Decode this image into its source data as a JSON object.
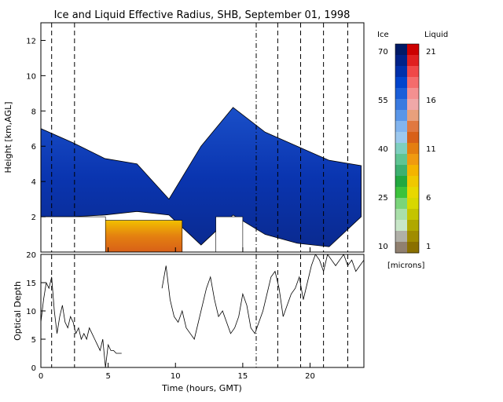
{
  "chart_data": [
    {
      "type": "heatmap",
      "title": "Ice and Liquid Effective Radius, SHB, September 01, 1998",
      "xlabel": "",
      "ylabel": "Height [km,AGL]",
      "xlim": [
        0,
        24
      ],
      "ylim": [
        0,
        13
      ],
      "xticks": [
        0,
        5,
        10,
        15,
        20
      ],
      "yticks": [
        2,
        4,
        6,
        8,
        10,
        12
      ],
      "xticklabels": [
        "",
        "",
        "",
        "",
        ""
      ],
      "yticklabels": [
        "2",
        "4",
        "6",
        "8",
        "10",
        "12"
      ],
      "grid": false,
      "vlines_dashed": [
        0.8,
        2.5,
        17.6,
        19.3,
        21.0,
        22.8
      ],
      "vlines_dashdot": [
        16.0
      ],
      "colorbar": {
        "ice_label": "Ice",
        "liquid_label": "Liquid",
        "unit_label": "[microns]",
        "ice_ticks": [
          "70",
          "55",
          "40",
          "25",
          "10"
        ],
        "liquid_ticks": [
          "21",
          "16",
          "11",
          "6",
          "1"
        ],
        "ice_colors": [
          "#001a66",
          "#002288",
          "#0030aa",
          "#0044cc",
          "#1a5ed8",
          "#3a7ae0",
          "#5a96e8",
          "#82b4ee",
          "#9cc8ee",
          "#7ecfc0",
          "#5fc493",
          "#3db070",
          "#22a840",
          "#3cc23c",
          "#7ad47a",
          "#a9dfa9",
          "#c8e6c8",
          "#b0b0a8",
          "#908070"
        ],
        "liquid_colors": [
          "#cc0000",
          "#e02020",
          "#f04848",
          "#f46c6c",
          "#f49090",
          "#f0a8a8",
          "#e8a07c",
          "#e07840",
          "#d86018",
          "#e47e10",
          "#f09a10",
          "#f4b400",
          "#f0c800",
          "#e8d800",
          "#d8d800",
          "#c4c400",
          "#b0a800",
          "#a08c00",
          "#8a7000"
        ]
      },
      "fields": {
        "ice_cloud": {
          "x_range": [
            0,
            23.8
          ],
          "base_km": [
            2.0,
            2.0,
            2.1,
            2.3,
            2.1,
            0.4,
            2.1,
            1.0,
            0.5,
            0.3,
            2.0
          ],
          "top_km": [
            7.0,
            6.2,
            5.3,
            5.0,
            3.0,
            6.0,
            8.2,
            6.8,
            6.0,
            5.2,
            4.9
          ],
          "typical_radius_microns": [
            55,
            60
          ]
        },
        "liquid_cloud": {
          "x_range": [
            4.8,
            10.5
          ],
          "base_km": 0.0,
          "top_km": 1.8,
          "typical_radius_microns": [
            6,
            11
          ]
        },
        "blanked_regions": [
          {
            "x": [
              0.0,
              4.8
            ],
            "y": [
              0,
              2
            ]
          },
          {
            "x": [
              13.0,
              15.0
            ],
            "y": [
              0,
              2
            ]
          }
        ]
      }
    },
    {
      "type": "line",
      "title": "",
      "xlabel": "Time (hours, GMT)",
      "ylabel": "Optical Depth",
      "xlim": [
        0,
        24
      ],
      "ylim": [
        0,
        20
      ],
      "xticks": [
        0,
        5,
        10,
        15,
        20
      ],
      "yticks": [
        0,
        5,
        10,
        15,
        20
      ],
      "xticklabels": [
        "0",
        "5",
        "10",
        "15",
        "20"
      ],
      "yticklabels": [
        "0",
        "5",
        "10",
        "15",
        "20"
      ],
      "grid": false,
      "vlines_dashed": [
        0.8,
        2.5,
        17.6,
        19.3,
        21.0,
        22.8
      ],
      "vlines_dashdot": [
        16.0
      ],
      "series": [
        {
          "name": "",
          "x": [
            0.0,
            0.2,
            0.4,
            0.6,
            0.8,
            1.0,
            1.2,
            1.4,
            1.6,
            1.8,
            2.0,
            2.2,
            2.4,
            2.6,
            2.8,
            3.0,
            3.2,
            3.4,
            3.6,
            3.8,
            4.0,
            4.2,
            4.4,
            4.6,
            4.8,
            5.0,
            5.2,
            5.4,
            5.6,
            5.8,
            6.0,
            9.0,
            9.3,
            9.6,
            9.9,
            10.2,
            10.5,
            10.8,
            11.1,
            11.4,
            11.7,
            12.0,
            12.3,
            12.6,
            12.9,
            13.2,
            13.5,
            13.8,
            14.1,
            14.4,
            14.7,
            15.0,
            15.3,
            15.6,
            15.9,
            16.2,
            16.5,
            16.8,
            17.1,
            17.4,
            17.7,
            18.0,
            18.3,
            18.6,
            18.9,
            19.2,
            19.5,
            19.8,
            20.1,
            20.4,
            20.7,
            21.0,
            21.3,
            21.6,
            21.9,
            22.2,
            22.5,
            22.8,
            23.1,
            23.4,
            23.7,
            24.0
          ],
          "y": [
            8,
            12,
            15,
            14,
            16,
            10,
            6,
            9,
            11,
            8,
            7,
            9,
            8,
            6,
            7,
            5,
            6,
            5,
            7,
            6,
            5,
            4,
            3,
            5,
            0,
            4,
            3,
            3,
            2.5,
            2.5,
            2.5,
            14,
            18,
            12,
            9,
            8,
            10,
            7,
            6,
            5,
            8,
            11,
            14,
            16,
            12,
            9,
            10,
            8,
            6,
            7,
            9,
            13,
            11,
            7,
            6,
            8,
            10,
            13,
            16,
            17,
            14,
            9,
            11,
            13,
            14,
            16,
            12,
            15,
            18,
            20,
            19,
            17,
            20,
            19,
            18,
            19,
            20,
            18,
            19,
            17,
            18,
            19
          ]
        }
      ]
    }
  ]
}
